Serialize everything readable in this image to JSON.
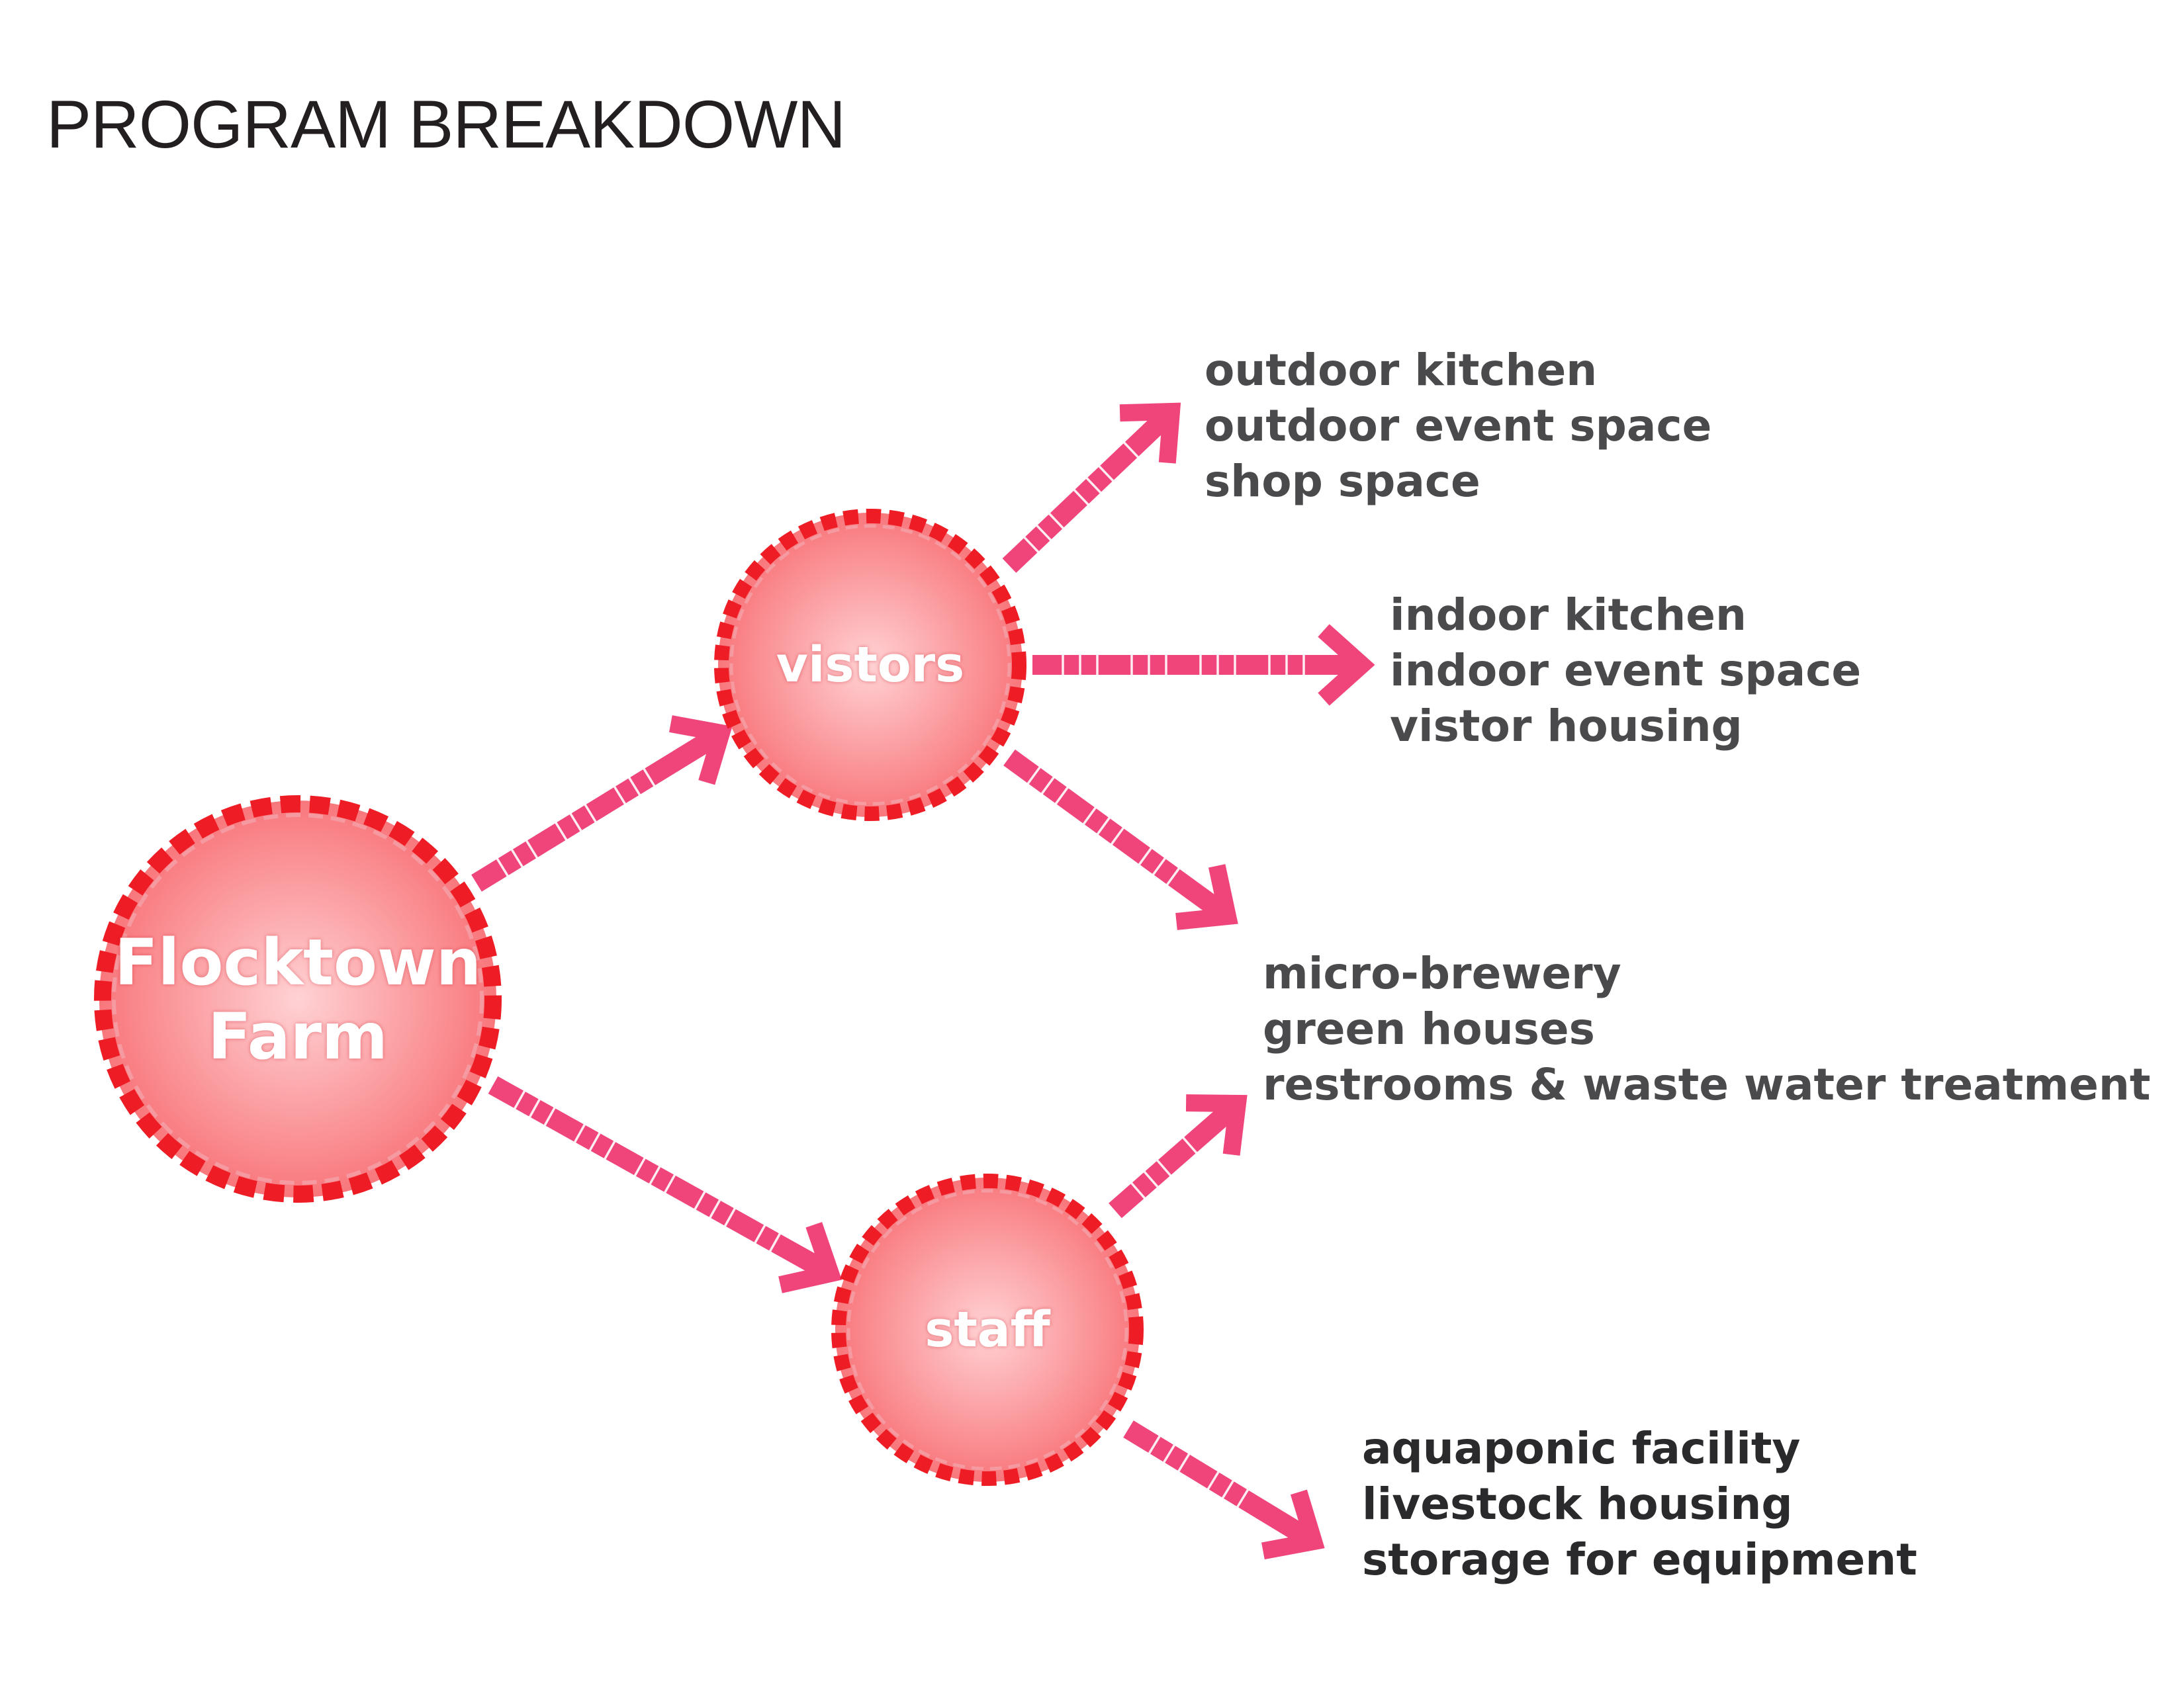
{
  "title": "PROGRAM BREAKDOWN",
  "nodes": {
    "root": {
      "lines": [
        "Flocktown",
        "Farm"
      ]
    },
    "visitors": {
      "label": "vistors"
    },
    "staff": {
      "label": "staff"
    }
  },
  "groups": {
    "outdoor": [
      "outdoor kitchen",
      "outdoor event space",
      "shop space"
    ],
    "indoor": [
      "indoor kitchen",
      "indoor event space",
      "vistor housing"
    ],
    "shared": [
      "micro-brewery",
      "green houses",
      "restrooms & waste water treatment"
    ],
    "staff_only": [
      "aquaponic facility",
      "livestock housing",
      "storage for equipment"
    ]
  },
  "colors": {
    "arrow": "#f0457a",
    "node_ring": "#ee1c24",
    "node_fill_center": "#ffd2d4",
    "node_fill_edge": "#f8777c",
    "text": "#4a4a4c"
  }
}
